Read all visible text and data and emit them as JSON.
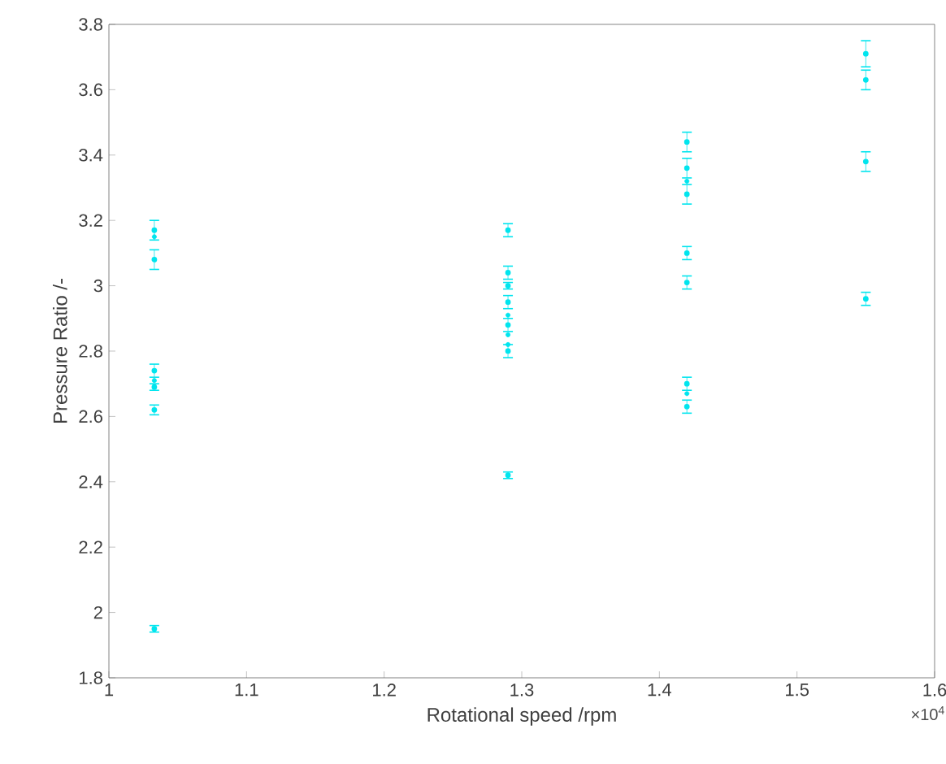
{
  "chart_data": {
    "type": "scatter",
    "xlabel": "Rotational speed /rpm",
    "ylabel": "Pressure Ratio /-",
    "annotations": [
      "×10$^{4}$"
    ],
    "x": [
      1.033,
      1.033,
      1.033,
      1.033,
      1.033,
      1.033,
      1.033,
      1.033,
      1.29,
      1.29,
      1.29,
      1.29,
      1.29,
      1.29,
      1.29,
      1.29,
      1.29,
      1.29,
      1.42,
      1.42,
      1.42,
      1.42,
      1.42,
      1.42,
      1.42,
      1.42,
      1.42,
      1.55,
      1.55,
      1.55,
      1.55
    ],
    "series": [
      {
        "color": "#00e5ee",
        "values": [
          3.17,
          3.15,
          3.08,
          2.74,
          2.71,
          2.69,
          2.62,
          1.95,
          3.17,
          3.04,
          3.0,
          2.95,
          2.91,
          2.88,
          2.85,
          2.82,
          2.8,
          2.42,
          3.44,
          3.36,
          3.32,
          3.28,
          3.1,
          3.01,
          2.7,
          2.67,
          2.63,
          3.71,
          3.63,
          3.38,
          2.96
        ],
        "errors": [
          0.03,
          null,
          0.03,
          0.02,
          null,
          0.01,
          0.015,
          0.01,
          0.02,
          0.02,
          0.01,
          0.02,
          null,
          0.02,
          null,
          null,
          0.02,
          0.01,
          0.03,
          0.03,
          null,
          0.03,
          0.02,
          0.02,
          0.02,
          null,
          0.02,
          0.04,
          0.03,
          0.03,
          0.02
        ]
      }
    ],
    "xlim": [
      1,
      1.6
    ],
    "xticks": [
      1,
      1.1,
      1.2,
      1.3,
      1.4,
      1.5,
      1.6
    ],
    "ylim": [
      1.8,
      3.8
    ],
    "yticks": [
      1.8,
      2,
      2.2,
      2.4,
      2.6,
      2.8,
      3,
      3.2,
      3.4,
      3.6,
      3.8
    ],
    "marker": "circle"
  }
}
